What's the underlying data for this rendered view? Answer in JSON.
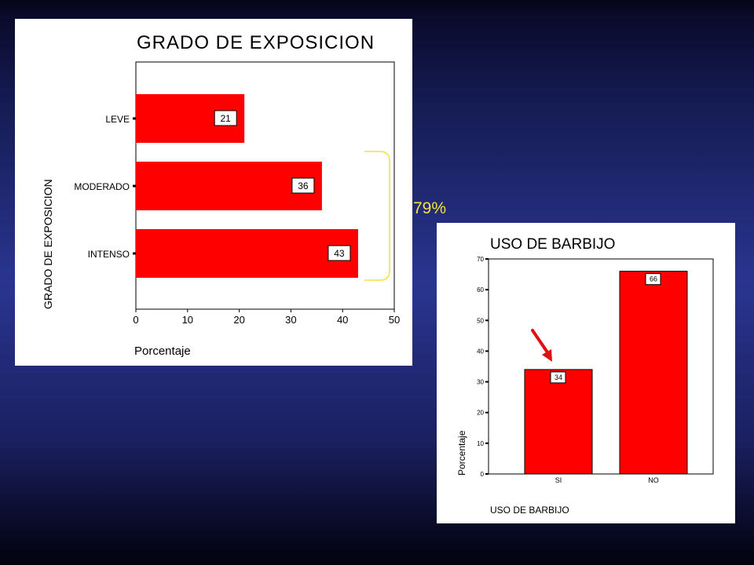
{
  "annotation": {
    "bracket_label": "79%",
    "bracket_color": "#f5e13a",
    "arrow_color": "#e01010"
  },
  "chart_data": [
    {
      "type": "bar",
      "orientation": "horizontal",
      "title": "GRADO DE EXPOSICION",
      "xlabel": "Porcentaje",
      "ylabel": "GRADO DE EXPOSICION",
      "categories": [
        "LEVE",
        "MODERADO",
        "INTENSO"
      ],
      "values": [
        21,
        36,
        43
      ],
      "data_labels": [
        "21",
        "36",
        "43"
      ],
      "xlim": [
        0,
        50
      ],
      "x_ticks": [
        0,
        10,
        20,
        30,
        40,
        50
      ],
      "bar_color": "#ff0000",
      "grid": false
    },
    {
      "type": "bar",
      "orientation": "vertical",
      "title": "USO DE BARBIJO",
      "xlabel": "USO DE BARBIJO",
      "ylabel": "Porcentaje",
      "categories": [
        "SI",
        "NO"
      ],
      "values": [
        34,
        66
      ],
      "data_labels": [
        "34",
        "66"
      ],
      "ylim": [
        0,
        70
      ],
      "y_ticks": [
        0,
        10,
        20,
        30,
        40,
        50,
        60,
        70
      ],
      "bar_color": "#ff0000",
      "grid": false
    }
  ]
}
